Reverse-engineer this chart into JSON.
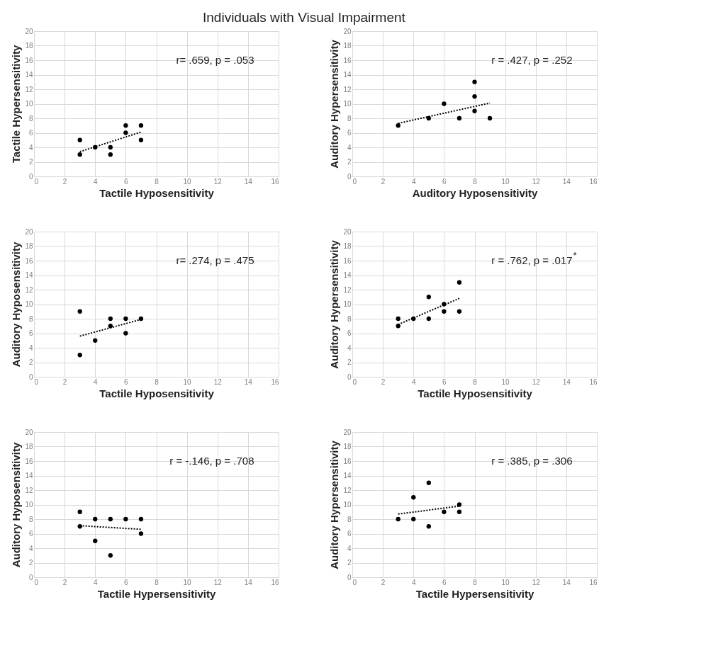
{
  "chart_data": [
    {
      "type": "scatter",
      "title": "Individuals with Visual Impairment",
      "xlabel": "Tactile Hyposensitivity",
      "ylabel": "Tactile Hypersensitivity",
      "xlim": [
        0,
        16
      ],
      "xticks": [
        0,
        2,
        4,
        6,
        8,
        10,
        12,
        14,
        16
      ],
      "ylim": [
        0,
        20
      ],
      "yticks": [
        0,
        2,
        4,
        6,
        8,
        10,
        12,
        14,
        16,
        18,
        20
      ],
      "grid": true,
      "annotations": [
        "r= .659, p = .053"
      ],
      "series": [
        {
          "marker": "circle",
          "color": "#000000",
          "x": [
            3,
            3,
            4,
            5,
            5,
            6,
            6,
            7,
            7
          ],
          "values": [
            5,
            3,
            4,
            4,
            3,
            7,
            6,
            7,
            5
          ]
        },
        {
          "type": "line",
          "line_style": "dotted",
          "color": "#000000",
          "x": [
            3,
            7
          ],
          "values": [
            3.4,
            6.1
          ]
        }
      ]
    },
    {
      "type": "scatter",
      "xlabel": "Auditory Hyposensitivity",
      "ylabel": "Auditory Hypersensitivity",
      "xlim": [
        0,
        16
      ],
      "xticks": [
        0,
        2,
        4,
        6,
        8,
        10,
        12,
        14,
        16
      ],
      "ylim": [
        0,
        20
      ],
      "yticks": [
        0,
        2,
        4,
        6,
        8,
        10,
        12,
        14,
        16,
        18,
        20
      ],
      "grid": true,
      "annotations": [
        "r = .427, p = .252"
      ],
      "series": [
        {
          "marker": "circle",
          "color": "#000000",
          "x": [
            3,
            5,
            6,
            7,
            8,
            8,
            8,
            9
          ],
          "values": [
            7,
            8,
            10,
            8,
            13,
            11,
            9,
            8
          ]
        },
        {
          "type": "line",
          "line_style": "dotted",
          "color": "#000000",
          "x": [
            3,
            9
          ],
          "values": [
            7.3,
            10.1
          ]
        }
      ]
    },
    {
      "type": "scatter",
      "xlabel": "Tactile Hyposensitivity",
      "ylabel": "Auditory Hyposensitivity",
      "xlim": [
        0,
        16
      ],
      "xticks": [
        0,
        2,
        4,
        6,
        8,
        10,
        12,
        14,
        16
      ],
      "ylim": [
        0,
        20
      ],
      "yticks": [
        0,
        2,
        4,
        6,
        8,
        10,
        12,
        14,
        16,
        18,
        20
      ],
      "grid": true,
      "annotations": [
        "r= .274, p = .475"
      ],
      "series": [
        {
          "marker": "circle",
          "color": "#000000",
          "x": [
            3,
            3,
            4,
            5,
            5,
            6,
            6,
            7
          ],
          "values": [
            9,
            3,
            5,
            8,
            7,
            8,
            6,
            8
          ]
        },
        {
          "type": "line",
          "line_style": "dotted",
          "color": "#000000",
          "x": [
            3,
            7
          ],
          "values": [
            5.6,
            7.9
          ]
        }
      ]
    },
    {
      "type": "scatter",
      "xlabel": "Tactile Hyposensitivity",
      "ylabel": "Auditory Hypersensitivity",
      "xlim": [
        0,
        16
      ],
      "xticks": [
        0,
        2,
        4,
        6,
        8,
        10,
        12,
        14,
        16
      ],
      "ylim": [
        0,
        20
      ],
      "yticks": [
        0,
        2,
        4,
        6,
        8,
        10,
        12,
        14,
        16,
        18,
        20
      ],
      "grid": true,
      "annotations": [
        "r = .762, p = .017$^{*}$"
      ],
      "series": [
        {
          "marker": "circle",
          "color": "#000000",
          "x": [
            3,
            3,
            4,
            5,
            5,
            6,
            6,
            7,
            7
          ],
          "values": [
            8,
            7,
            8,
            11,
            8,
            10,
            9,
            13,
            9
          ]
        },
        {
          "type": "line",
          "line_style": "dotted",
          "color": "#000000",
          "x": [
            3,
            7
          ],
          "values": [
            7.2,
            10.8
          ]
        }
      ]
    },
    {
      "type": "scatter",
      "xlabel": "Tactile Hypersensitivity",
      "ylabel": "Auditory Hyposensitivity",
      "xlim": [
        0,
        16
      ],
      "xticks": [
        0,
        2,
        4,
        6,
        8,
        10,
        12,
        14,
        16
      ],
      "ylim": [
        0,
        20
      ],
      "yticks": [
        0,
        2,
        4,
        6,
        8,
        10,
        12,
        14,
        16,
        18,
        20
      ],
      "grid": true,
      "annotations": [
        "r = -.146, p = .708"
      ],
      "series": [
        {
          "marker": "circle",
          "color": "#000000",
          "x": [
            3,
            3,
            4,
            4,
            5,
            5,
            6,
            7,
            7
          ],
          "values": [
            9,
            7,
            8,
            5,
            8,
            3,
            8,
            8,
            6
          ]
        },
        {
          "type": "line",
          "line_style": "dotted",
          "color": "#000000",
          "x": [
            3,
            7
          ],
          "values": [
            7.1,
            6.6
          ]
        }
      ]
    },
    {
      "type": "scatter",
      "xlabel": "Tactile Hypersensitivity",
      "ylabel": "Auditory Hypersensitivity",
      "xlim": [
        0,
        16
      ],
      "xticks": [
        0,
        2,
        4,
        6,
        8,
        10,
        12,
        14,
        16
      ],
      "ylim": [
        0,
        20
      ],
      "yticks": [
        0,
        2,
        4,
        6,
        8,
        10,
        12,
        14,
        16,
        18,
        20
      ],
      "grid": true,
      "annotations": [
        "r = .385, p = .306"
      ],
      "series": [
        {
          "marker": "circle",
          "color": "#000000",
          "x": [
            3,
            4,
            4,
            5,
            5,
            6,
            7,
            7
          ],
          "values": [
            8,
            11,
            8,
            13,
            7,
            9,
            10,
            9
          ]
        },
        {
          "type": "line",
          "line_style": "dotted",
          "color": "#000000",
          "x": [
            3,
            7
          ],
          "values": [
            8.7,
            9.8
          ]
        }
      ]
    }
  ]
}
